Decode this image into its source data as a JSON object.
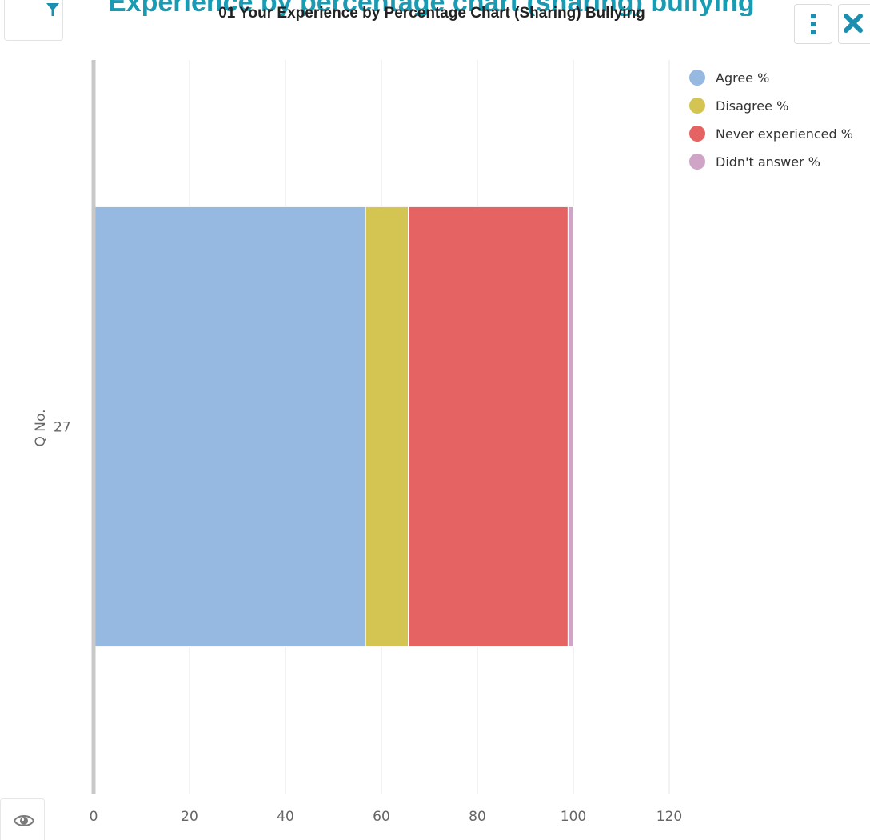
{
  "header": {
    "background_title": "Experience by percentage chart (sharing) bullying",
    "filter_icon": "filter-icon",
    "menu_icon": "vertical-dots-icon",
    "close_icon": "close-icon"
  },
  "footer": {
    "visibility_icon": "eye-icon"
  },
  "chart_data": {
    "type": "bar",
    "orientation": "horizontal",
    "stacked": true,
    "title": "01 Your Experience by Percentage Chart (Sharing) Bullying",
    "xlabel": "",
    "ylabel": "Q No.",
    "categories": [
      "27"
    ],
    "xlim": [
      0,
      120
    ],
    "x_ticks": [
      "0",
      "20",
      "40",
      "60",
      "80",
      "100",
      "120"
    ],
    "grid": true,
    "legend_position": "top-right",
    "series": [
      {
        "name": "Agree %",
        "color": "#95b9e0",
        "values": [
          56.7
        ]
      },
      {
        "name": "Disagree %",
        "color": "#d4c451",
        "values": [
          8.9
        ]
      },
      {
        "name": "Never experienced %",
        "color": "#e66363",
        "values": [
          33.3
        ]
      },
      {
        "name": "Didn't answer %",
        "color": "#cfa4c7",
        "values": [
          1.1
        ]
      }
    ]
  }
}
